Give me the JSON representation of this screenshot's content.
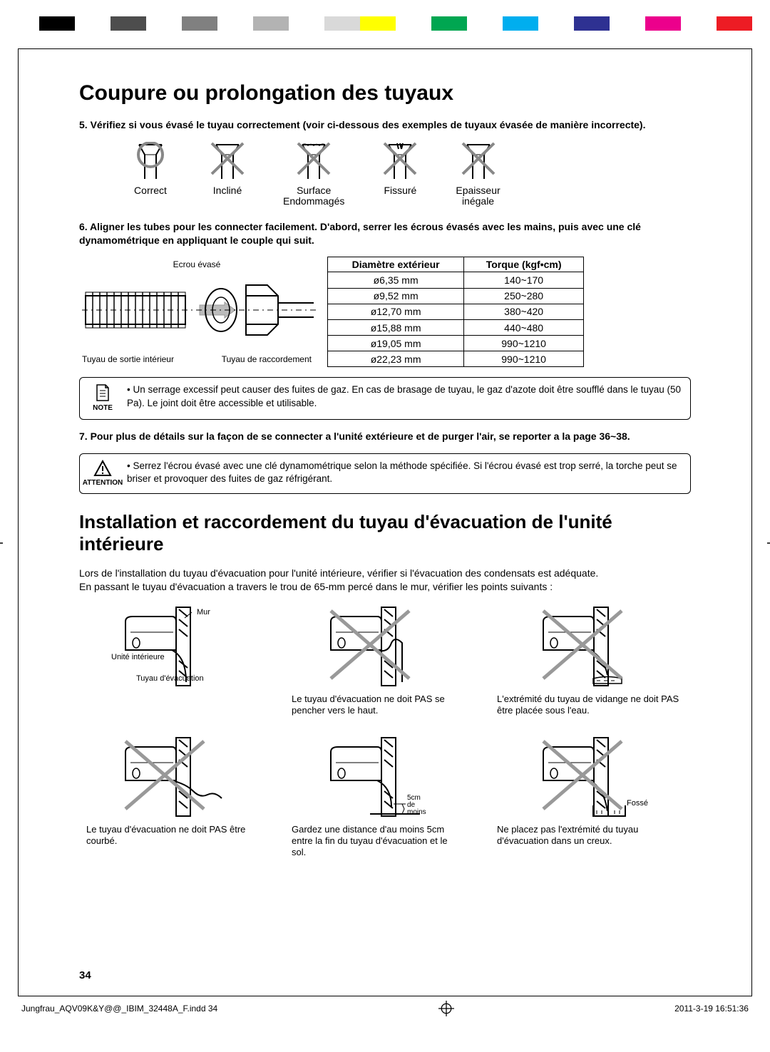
{
  "color_bars_left": [
    "#000000",
    "#ffffff",
    "#4d4d4d",
    "#ffffff",
    "#808080",
    "#ffffff",
    "#b3b3b3",
    "#ffffff",
    "#d9d9d9"
  ],
  "color_bars_right": [
    "#ffff00",
    "#ffffff",
    "#00a651",
    "#ffffff",
    "#00aeef",
    "#ffffff",
    "#2e3192",
    "#ffffff",
    "#ec008c",
    "#ffffff",
    "#ed1c24"
  ],
  "heading1": "Coupure ou prolongation des tuyaux",
  "step5": "5.   Vérifiez si vous évasé le tuyau correctement (voir ci-dessous des exemples de tuyaux évasée de manière incorrecte).",
  "flared": [
    {
      "label": "Correct",
      "cross": false,
      "circle": true
    },
    {
      "label": "Incliné",
      "cross": true
    },
    {
      "label": "Surface\nEndommagés",
      "cross": true,
      "rough": true
    },
    {
      "label": "Fissuré",
      "cross": true,
      "crack": true
    },
    {
      "label": "Epaisseur\ninégale",
      "cross": true
    }
  ],
  "step6": "6.   Aligner les tubes pour les connecter facilement. D'abord, serrer les écrous évasés avec les mains, puis avec une clé dynamométrique en appliquant le couple qui suit.",
  "pipe_labels": {
    "top": "Ecrou évasé",
    "bl": "Tuyau de sortie intérieur",
    "br": "Tuyau de raccordement"
  },
  "torque_table": {
    "headers": [
      "Diamètre extérieur",
      "Torque (kgf•cm)"
    ],
    "rows": [
      [
        "ø6,35 mm",
        "140~170"
      ],
      [
        "ø9,52 mm",
        "250~280"
      ],
      [
        "ø12,70 mm",
        "380~420"
      ],
      [
        "ø15,88 mm",
        "440~480"
      ],
      [
        "ø19,05 mm",
        "990~1210"
      ],
      [
        "ø22,23 mm",
        "990~1210"
      ]
    ]
  },
  "note_label": "NOTE",
  "note_text": "Un serrage excessif peut causer des fuites de gaz. En cas de brasage de tuyau, le gaz d'azote doit être soufflé dans le tuyau (50 Pa). Le joint doit être accessible et utilisable.",
  "step7": "7.   Pour plus de détails sur la façon de se connecter a l'unité extérieure et de purger l'air, se reporter a la page 36~38.",
  "attention_label": "ATTENTION",
  "attention_text": "Serrez l'écrou évasé avec une clé dynamométrique selon la méthode spécifiée. Si l'écrou évasé est trop serré, la torche peut se briser et provoquer des fuites de gaz réfrigérant.",
  "heading2": "Installation et raccordement du tuyau d'évacuation de l'unité intérieure",
  "intro": "Lors de l'installation du tuyau d'évacuation pour l'unité intérieure, vérifier si l'évacuation des condensats est adéquate.\nEn passant le tuyau d'évacuation a travers le trou de 65-mm percé dans le mur, vérifier les points suivants :",
  "drain": [
    {
      "caption": "",
      "labels": {
        "a": "Mur",
        "b": "Unité intérieure",
        "c": "Tuyau d'évacuation"
      },
      "cross": false
    },
    {
      "caption": "Le tuyau d'évacuation ne doit PAS se pencher vers le haut.",
      "cross": true
    },
    {
      "caption": "L'extrémité du tuyau de vidange ne doit PAS être placée sous l'eau.",
      "cross": true
    },
    {
      "caption": "Le tuyau d'évacuation ne doit PAS être courbé.",
      "cross": true
    },
    {
      "caption": "Gardez une distance d'au moins 5cm entre la fin du tuyau d'évacuation et le sol.",
      "labels": {
        "d": "5cm\nde\nmoins"
      },
      "cross": false
    },
    {
      "caption": "Ne placez pas l'extrémité du tuyau d'évacuation dans un creux.",
      "labels": {
        "e": "Fossé"
      },
      "cross": true
    }
  ],
  "page_number": "34",
  "footer_left": "Jungfrau_AQV09K&Y@@_IBIM_32448A_F.indd   34",
  "footer_right": "2011-3-19   16:51:36"
}
